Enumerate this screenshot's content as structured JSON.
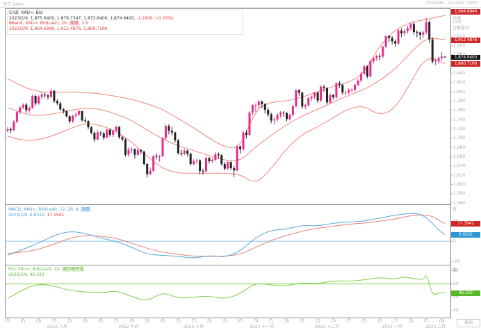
{
  "top_bar": {
    "instrument": "每日 XAU=",
    "date_range": "2022/08 - 2023/02 (GMT)",
    "auto_label": "自动"
  },
  "main_panel": {
    "legend": {
      "line1": "Cndl, XAU=, Bid",
      "line2_values": "2023/2/9, 1,875.6400, 1,876.7347, 1,873.6400, 1,874.9400,",
      "line2_change": "-1.2900, (-0.07%)",
      "line3_prefix": "BBand, XAU=, Bid(Last), 20,",
      "line3_ma_type": "简单",
      "line3_suffix": ", 2.0",
      "line4": "2023/2/9, 1,964.6846, 1,912.4876, 1,860.7106"
    },
    "axis_header": [
      "价格",
      "USD",
      "金衡盎司"
    ],
    "labels": {
      "upper_band": "1,964.6846",
      "middle_band": "1,912.4876",
      "last_price": "1,874.9400",
      "lower_band": "1,860.7106"
    }
  },
  "macd_panel": {
    "legend": {
      "line1_prefix": "MACD, XAU=, Bid(Last), 12, 26, 9,",
      "ma_type": "指数",
      "line2_date": "2023/2/9,",
      "macd_value": "6.6522,",
      "signal_value": "17.3941"
    },
    "axis_header": "值",
    "labels": {
      "signal": "17.3941",
      "macd": "6.6522"
    }
  },
  "rsi_panel": {
    "legend": {
      "line1_prefix": "RSI, XAU=, Bid(Last), 14,",
      "smoothing": "威尔德平滑",
      "line2": "2023/2/9, 46.322"
    },
    "axis_header": "值",
    "labels": {
      "rsi": "46.322"
    }
  },
  "colors": {
    "up": "#e82a8a",
    "down": "#222222",
    "bband": "#f08478",
    "macd_line": "#58a8d8",
    "signal_line": "#e88078",
    "zero_line": "#8fc3e8",
    "rsi_line": "#7ccf45",
    "label_red_bg": "#cc2626",
    "label_black_bg": "#141414",
    "label_blue_bg": "#2e96d2",
    "label_green_bg": "#58b82c",
    "frame": "#8a8a8a",
    "tick": "#aaaaaa"
  },
  "chart_data": {
    "type": "candlestick+indicators",
    "instrument": "XAU=",
    "interval": "daily",
    "last_date": "2023/2/9",
    "price_ylim": [
      1560,
      1980
    ],
    "price_ticks": [
      1920,
      1900,
      1880,
      1860,
      1840,
      1820,
      1800,
      1780,
      1760,
      1740,
      1720,
      1700,
      1680,
      1660,
      1640,
      1620,
      1600,
      1580,
      1560
    ],
    "candles_ohlc": [
      [
        1716,
        1724,
        1712,
        1719
      ],
      [
        1719,
        1723,
        1711,
        1717
      ],
      [
        1717,
        1739,
        1715,
        1735
      ],
      [
        1735,
        1759,
        1732,
        1756
      ],
      [
        1756,
        1769,
        1752,
        1766
      ],
      [
        1766,
        1775,
        1762,
        1772
      ],
      [
        1772,
        1776,
        1755,
        1760
      ],
      [
        1760,
        1768,
        1754,
        1765
      ],
      [
        1765,
        1794,
        1763,
        1791
      ],
      [
        1791,
        1793,
        1770,
        1775
      ],
      [
        1775,
        1792,
        1772,
        1789
      ],
      [
        1789,
        1800,
        1784,
        1794
      ],
      [
        1794,
        1798,
        1786,
        1792
      ],
      [
        1792,
        1795,
        1783,
        1789
      ],
      [
        1789,
        1807,
        1786,
        1802
      ],
      [
        1802,
        1804,
        1776,
        1780
      ],
      [
        1780,
        1784,
        1771,
        1775
      ],
      [
        1775,
        1778,
        1759,
        1762
      ],
      [
        1762,
        1765,
        1753,
        1758
      ],
      [
        1758,
        1760,
        1744,
        1747
      ],
      [
        1747,
        1749,
        1731,
        1736
      ],
      [
        1736,
        1750,
        1733,
        1748
      ],
      [
        1748,
        1755,
        1744,
        1751
      ],
      [
        1751,
        1761,
        1747,
        1758
      ],
      [
        1758,
        1759,
        1735,
        1738
      ],
      [
        1738,
        1745,
        1732,
        1737
      ],
      [
        1737,
        1739,
        1719,
        1723
      ],
      [
        1723,
        1726,
        1708,
        1711
      ],
      [
        1711,
        1714,
        1692,
        1697
      ],
      [
        1697,
        1717,
        1695,
        1712
      ],
      [
        1712,
        1714,
        1704,
        1710
      ],
      [
        1710,
        1713,
        1696,
        1701
      ],
      [
        1701,
        1720,
        1699,
        1718
      ],
      [
        1718,
        1721,
        1703,
        1707
      ],
      [
        1707,
        1718,
        1702,
        1716
      ],
      [
        1716,
        1727,
        1713,
        1724
      ],
      [
        1724,
        1726,
        1698,
        1702
      ],
      [
        1702,
        1705,
        1693,
        1697
      ],
      [
        1697,
        1699,
        1660,
        1664
      ],
      [
        1664,
        1680,
        1659,
        1675
      ],
      [
        1675,
        1680,
        1668,
        1676
      ],
      [
        1676,
        1678,
        1656,
        1664
      ],
      [
        1664,
        1678,
        1661,
        1674
      ],
      [
        1674,
        1677,
        1665,
        1671
      ],
      [
        1671,
        1672,
        1641,
        1644
      ],
      [
        1644,
        1646,
        1615,
        1622
      ],
      [
        1622,
        1636,
        1620,
        1629
      ],
      [
        1629,
        1663,
        1627,
        1661
      ],
      [
        1661,
        1667,
        1654,
        1660
      ],
      [
        1660,
        1664,
        1649,
        1661
      ],
      [
        1661,
        1702,
        1659,
        1700
      ],
      [
        1700,
        1729,
        1695,
        1726
      ],
      [
        1726,
        1730,
        1708,
        1716
      ],
      [
        1716,
        1724,
        1706,
        1712
      ],
      [
        1712,
        1714,
        1690,
        1695
      ],
      [
        1695,
        1698,
        1664,
        1668
      ],
      [
        1668,
        1674,
        1661,
        1666
      ],
      [
        1666,
        1677,
        1663,
        1673
      ],
      [
        1673,
        1675,
        1660,
        1666
      ],
      [
        1666,
        1668,
        1640,
        1644
      ],
      [
        1644,
        1654,
        1641,
        1650
      ],
      [
        1650,
        1656,
        1644,
        1652
      ],
      [
        1652,
        1654,
        1622,
        1629
      ],
      [
        1629,
        1634,
        1621,
        1628
      ],
      [
        1628,
        1660,
        1626,
        1657
      ],
      [
        1657,
        1659,
        1645,
        1650
      ],
      [
        1650,
        1658,
        1646,
        1653
      ],
      [
        1653,
        1670,
        1650,
        1665
      ],
      [
        1665,
        1669,
        1655,
        1663
      ],
      [
        1663,
        1665,
        1640,
        1644
      ],
      [
        1644,
        1648,
        1630,
        1634
      ],
      [
        1634,
        1651,
        1631,
        1648
      ],
      [
        1648,
        1650,
        1631,
        1635
      ],
      [
        1635,
        1640,
        1616,
        1630
      ],
      [
        1630,
        1685,
        1628,
        1682
      ],
      [
        1682,
        1684,
        1666,
        1676
      ],
      [
        1676,
        1716,
        1672,
        1712
      ],
      [
        1712,
        1717,
        1699,
        1707
      ],
      [
        1707,
        1758,
        1705,
        1755
      ],
      [
        1755,
        1773,
        1749,
        1771
      ],
      [
        1771,
        1775,
        1756,
        1771
      ],
      [
        1771,
        1782,
        1764,
        1779
      ],
      [
        1779,
        1781,
        1765,
        1773
      ],
      [
        1773,
        1776,
        1753,
        1761
      ],
      [
        1761,
        1766,
        1746,
        1751
      ],
      [
        1751,
        1755,
        1732,
        1738
      ],
      [
        1738,
        1745,
        1729,
        1740
      ],
      [
        1740,
        1753,
        1736,
        1750
      ],
      [
        1750,
        1758,
        1744,
        1755
      ],
      [
        1755,
        1758,
        1746,
        1754
      ],
      [
        1754,
        1756,
        1736,
        1741
      ],
      [
        1741,
        1753,
        1738,
        1750
      ],
      [
        1750,
        1772,
        1747,
        1769
      ],
      [
        1769,
        1806,
        1766,
        1803
      ],
      [
        1803,
        1806,
        1791,
        1798
      ],
      [
        1798,
        1800,
        1763,
        1768
      ],
      [
        1768,
        1774,
        1762,
        1771
      ],
      [
        1771,
        1789,
        1768,
        1786
      ],
      [
        1786,
        1792,
        1780,
        1789
      ],
      [
        1789,
        1800,
        1784,
        1798
      ],
      [
        1798,
        1800,
        1776,
        1781
      ],
      [
        1781,
        1814,
        1778,
        1811
      ],
      [
        1811,
        1815,
        1800,
        1808
      ],
      [
        1808,
        1810,
        1773,
        1777
      ],
      [
        1777,
        1796,
        1774,
        1793
      ],
      [
        1793,
        1795,
        1783,
        1788
      ],
      [
        1788,
        1821,
        1785,
        1818
      ],
      [
        1818,
        1823,
        1808,
        1815
      ],
      [
        1815,
        1817,
        1793,
        1798
      ],
      [
        1798,
        1802,
        1792,
        1798
      ],
      [
        1798,
        1808,
        1795,
        1804
      ],
      [
        1804,
        1808,
        1798,
        1804
      ],
      [
        1804,
        1818,
        1801,
        1815
      ],
      [
        1815,
        1827,
        1812,
        1824
      ],
      [
        1824,
        1843,
        1821,
        1839
      ],
      [
        1839,
        1858,
        1836,
        1855
      ],
      [
        1855,
        1857,
        1829,
        1833
      ],
      [
        1833,
        1869,
        1831,
        1866
      ],
      [
        1866,
        1874,
        1861,
        1872
      ],
      [
        1872,
        1880,
        1866,
        1877
      ],
      [
        1877,
        1882,
        1868,
        1876
      ],
      [
        1876,
        1899,
        1872,
        1897
      ],
      [
        1897,
        1922,
        1894,
        1920
      ],
      [
        1920,
        1923,
        1907,
        1916
      ],
      [
        1916,
        1920,
        1902,
        1909
      ],
      [
        1909,
        1913,
        1896,
        1904
      ],
      [
        1904,
        1935,
        1901,
        1932
      ],
      [
        1932,
        1937,
        1918,
        1926
      ],
      [
        1926,
        1935,
        1920,
        1931
      ],
      [
        1931,
        1942,
        1926,
        1937
      ],
      [
        1937,
        1949,
        1932,
        1946
      ],
      [
        1946,
        1950,
        1923,
        1929
      ],
      [
        1929,
        1933,
        1917,
        1928
      ],
      [
        1928,
        1930,
        1911,
        1923
      ],
      [
        1923,
        1932,
        1916,
        1928
      ],
      [
        1928,
        1960,
        1924,
        1950
      ],
      [
        1950,
        1954,
        1905,
        1913
      ],
      [
        1913,
        1918,
        1861,
        1865
      ],
      [
        1865,
        1872,
        1857,
        1867
      ],
      [
        1867,
        1876,
        1860,
        1873
      ],
      [
        1873,
        1886,
        1868,
        1876
      ],
      [
        1875.64,
        1876.73,
        1873.64,
        1874.94
      ]
    ],
    "bollinger": {
      "period": 20,
      "stdev": 2,
      "idx": [
        0,
        5,
        10,
        15,
        20,
        25,
        30,
        35,
        40,
        45,
        50,
        55,
        60,
        65,
        70,
        75,
        80,
        85,
        90,
        95,
        100,
        105,
        110,
        115,
        120,
        125,
        130,
        135,
        141
      ],
      "upper": [
        1828,
        1810,
        1800,
        1798,
        1800,
        1798,
        1796,
        1790,
        1784,
        1774,
        1762,
        1742,
        1722,
        1700,
        1680,
        1678,
        1762,
        1778,
        1780,
        1788,
        1800,
        1812,
        1820,
        1840,
        1900,
        1934,
        1950,
        1956,
        1964.68
      ],
      "middle": [
        1766,
        1752,
        1748,
        1752,
        1760,
        1765,
        1762,
        1752,
        1738,
        1717,
        1698,
        1683,
        1673,
        1662,
        1652,
        1650,
        1681,
        1706,
        1729,
        1748,
        1762,
        1778,
        1792,
        1805,
        1824,
        1849,
        1885,
        1917,
        1912.49
      ],
      "lower": [
        1704,
        1694,
        1696,
        1706,
        1720,
        1732,
        1728,
        1714,
        1692,
        1660,
        1634,
        1624,
        1624,
        1624,
        1624,
        1622,
        1600,
        1634,
        1678,
        1708,
        1724,
        1744,
        1764,
        1770,
        1748,
        1764,
        1820,
        1878,
        1860.71
      ]
    },
    "macd": {
      "params": [
        12,
        26,
        9
      ],
      "ticks": [
        20,
        0,
        -20
      ],
      "ylim": [
        -22,
        36
      ],
      "idx": [
        0,
        5,
        10,
        15,
        20,
        25,
        30,
        35,
        40,
        45,
        50,
        55,
        60,
        65,
        70,
        75,
        80,
        85,
        90,
        95,
        100,
        105,
        110,
        115,
        120,
        125,
        128,
        131,
        134,
        137,
        139,
        141
      ],
      "macd": [
        -14,
        -8,
        -2,
        6,
        10,
        8,
        3,
        0,
        -6,
        -13,
        -14,
        -15,
        -17,
        -14,
        -16,
        -10,
        4,
        11,
        12,
        16,
        15,
        18,
        19,
        20,
        23,
        26,
        27,
        28,
        26,
        18,
        11,
        6.65
      ],
      "signal": [
        -12,
        -11,
        -8,
        -3,
        3,
        6,
        5,
        3,
        -2,
        -7,
        -11,
        -13,
        -15,
        -15,
        -15,
        -13,
        -6,
        1,
        6,
        10,
        13,
        15,
        17,
        18,
        20,
        22,
        24,
        26,
        26,
        25,
        21,
        17.39
      ]
    },
    "rsi": {
      "period": 14,
      "ticks": [
        80,
        60,
        40,
        20
      ],
      "ylim": [
        8,
        88
      ],
      "ref_line": 60,
      "idx": [
        0,
        5,
        10,
        15,
        20,
        25,
        30,
        35,
        40,
        45,
        50,
        55,
        60,
        65,
        70,
        75,
        80,
        85,
        90,
        95,
        100,
        105,
        110,
        115,
        120,
        125,
        128,
        131,
        134,
        135,
        136,
        137,
        138,
        139,
        140,
        141
      ],
      "values": [
        38,
        52,
        60,
        57,
        50,
        48,
        46,
        50,
        41,
        33,
        48,
        38,
        40,
        42,
        37,
        45,
        62,
        58,
        57,
        62,
        60,
        65,
        64,
        66,
        70,
        67,
        71,
        68,
        66,
        75,
        60,
        45,
        44,
        46,
        47,
        46.32
      ]
    },
    "x_axis": {
      "week_label_step": 5,
      "week_labels": [
        "25",
        "01",
        "08",
        "15",
        "22",
        "29",
        "05",
        "12",
        "19",
        "26",
        "03",
        "10",
        "17",
        "24",
        "31",
        "07",
        "14",
        "21",
        "28",
        "05",
        "12",
        "19",
        "27",
        "03",
        "10",
        "17",
        "24",
        "01",
        "08"
      ],
      "months": [
        {
          "label": "2022 八月",
          "i": 16
        },
        {
          "label": "2022 九月",
          "i": 39
        },
        {
          "label": "2022 十月",
          "i": 60
        },
        {
          "label": "2022 十一月",
          "i": 82
        },
        {
          "label": "2022 十二月",
          "i": 103
        },
        {
          "label": "2023 一月",
          "i": 124
        },
        {
          "label": "2023 二月",
          "i": 138
        }
      ]
    }
  }
}
